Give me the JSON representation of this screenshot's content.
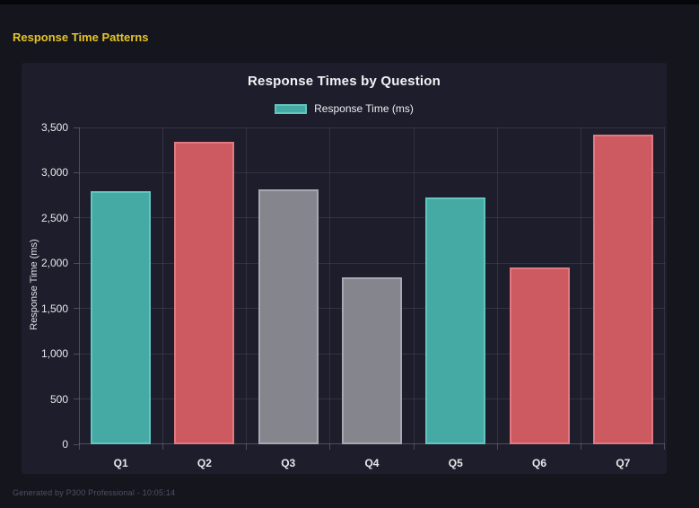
{
  "page": {
    "header_title": "Response Time Patterns",
    "footer_text": "Generated by P300 Professional - 10:05:14"
  },
  "colors": {
    "page_bg": "#15151e",
    "topbar_bg": "#06060a",
    "panel_bg": "#1d1d2c",
    "header_title": "#e6c428",
    "grid": "rgba(255,255,255,0.09)",
    "axis_line": "rgba(255,255,255,0.22)",
    "axis_text": "#e8e8ea",
    "footer_text": "#50505f",
    "teal": "#45a9a4",
    "teal_border": "#63c5bf",
    "red": "#cd5a60",
    "red_border": "#e2797f",
    "gray": "#85858d",
    "gray_border": "#a7a7af"
  },
  "chart_data": {
    "type": "bar",
    "title": "Response Times by Question",
    "legend": [
      {
        "label": "Response Time (ms)",
        "color": "teal"
      }
    ],
    "legend_position": "top",
    "categories": [
      "Q1",
      "Q2",
      "Q3",
      "Q4",
      "Q5",
      "Q6",
      "Q7"
    ],
    "values": [
      2800,
      3340,
      2820,
      1840,
      2730,
      1950,
      3420
    ],
    "bar_colors": [
      "teal",
      "red",
      "gray",
      "gray",
      "teal",
      "red",
      "red"
    ],
    "xlabel": "",
    "ylabel": "Response Time (ms)",
    "ylim": [
      0,
      3500
    ],
    "ytick_step": 500,
    "ytick_labels": [
      "0",
      "500",
      "1,000",
      "1,500",
      "2,000",
      "2,500",
      "3,000",
      "3,500"
    ],
    "grid": true
  }
}
